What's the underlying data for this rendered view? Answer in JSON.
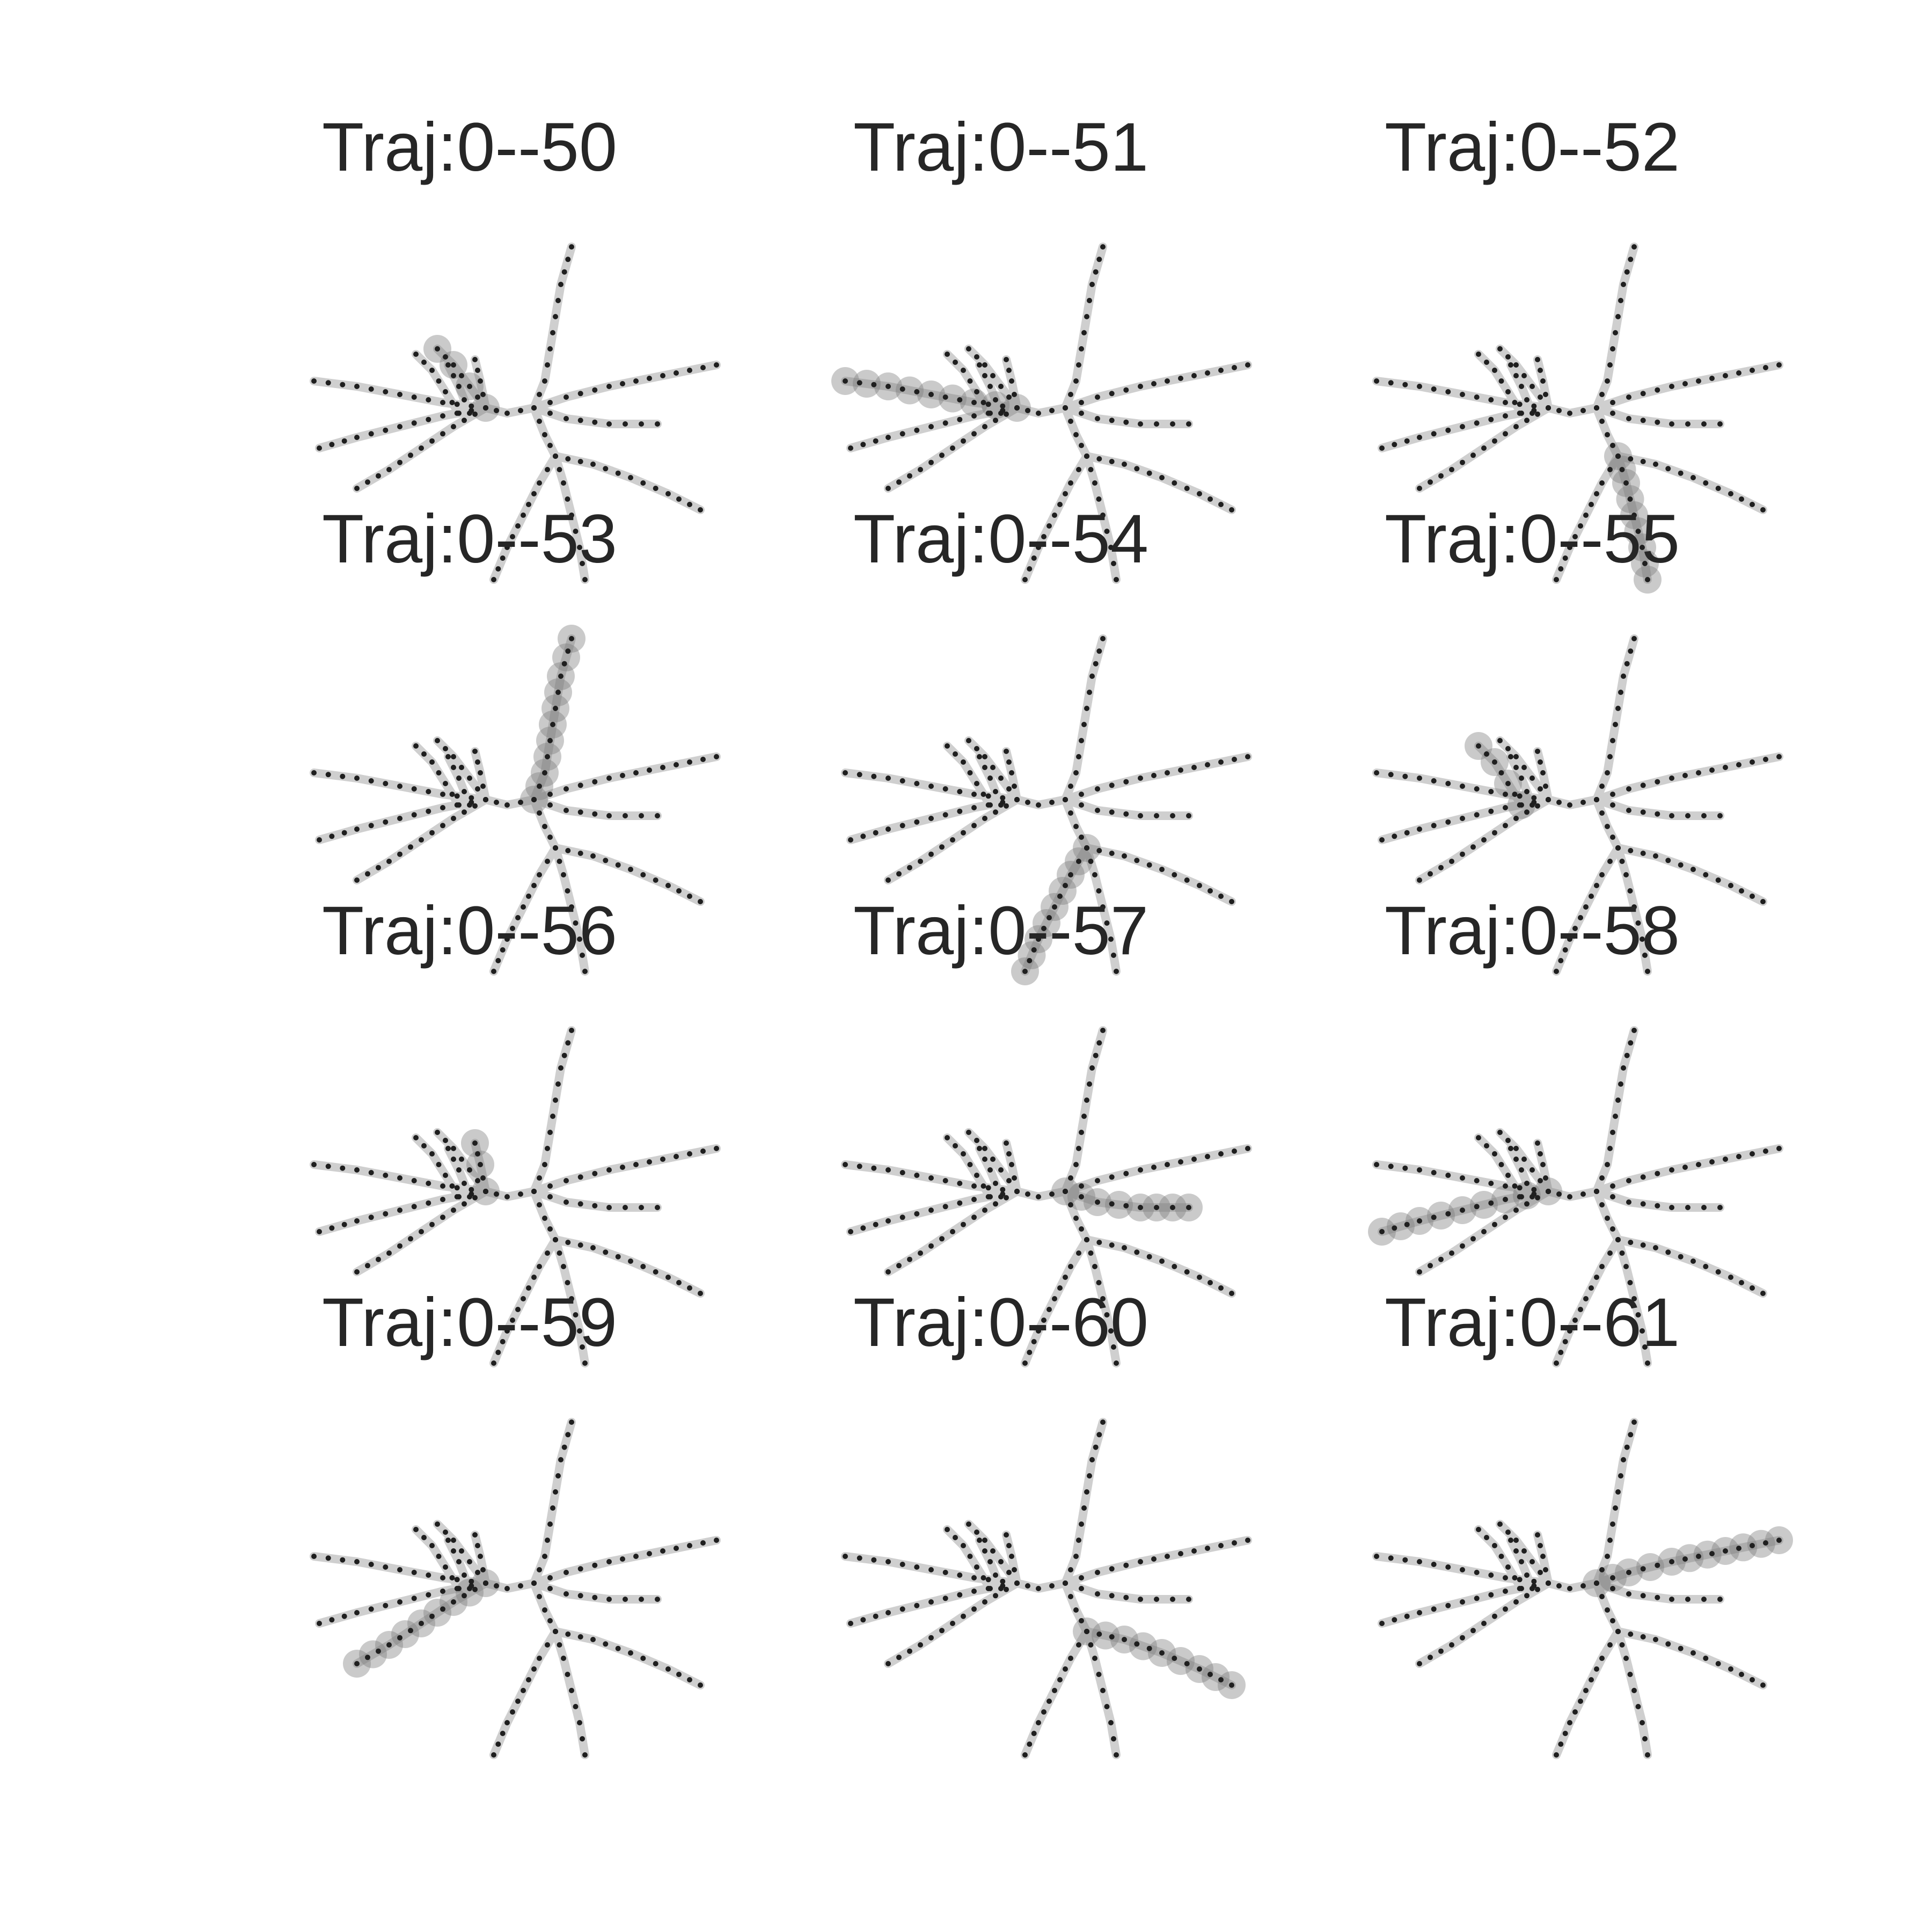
{
  "panels": [
    {
      "title": "Traj:0--50",
      "highlight_branch": "upper-left-c"
    },
    {
      "title": "Traj:0--51",
      "highlight_branch": "left-a"
    },
    {
      "title": "Traj:0--52",
      "highlight_branch": "lower-middle"
    },
    {
      "title": "Traj:0--53",
      "highlight_branch": "top"
    },
    {
      "title": "Traj:0--54",
      "highlight_branch": "lower-left"
    },
    {
      "title": "Traj:0--55",
      "highlight_branch": "upper-left-a"
    },
    {
      "title": "Traj:0--56",
      "highlight_branch": "upper-left-d"
    },
    {
      "title": "Traj:0--57",
      "highlight_branch": "right-lower"
    },
    {
      "title": "Traj:0--58",
      "highlight_branch": "left-b"
    },
    {
      "title": "Traj:0--59",
      "highlight_branch": "left-c"
    },
    {
      "title": "Traj:0--60",
      "highlight_branch": "lower-right"
    },
    {
      "title": "Traj:0--61",
      "highlight_branch": "right-upper"
    }
  ],
  "colors": {
    "tree_line": "#cfcfcf",
    "node_dot": "#1f1f1f",
    "highlight": "#7a7a7a",
    "title_text": "#262626"
  }
}
